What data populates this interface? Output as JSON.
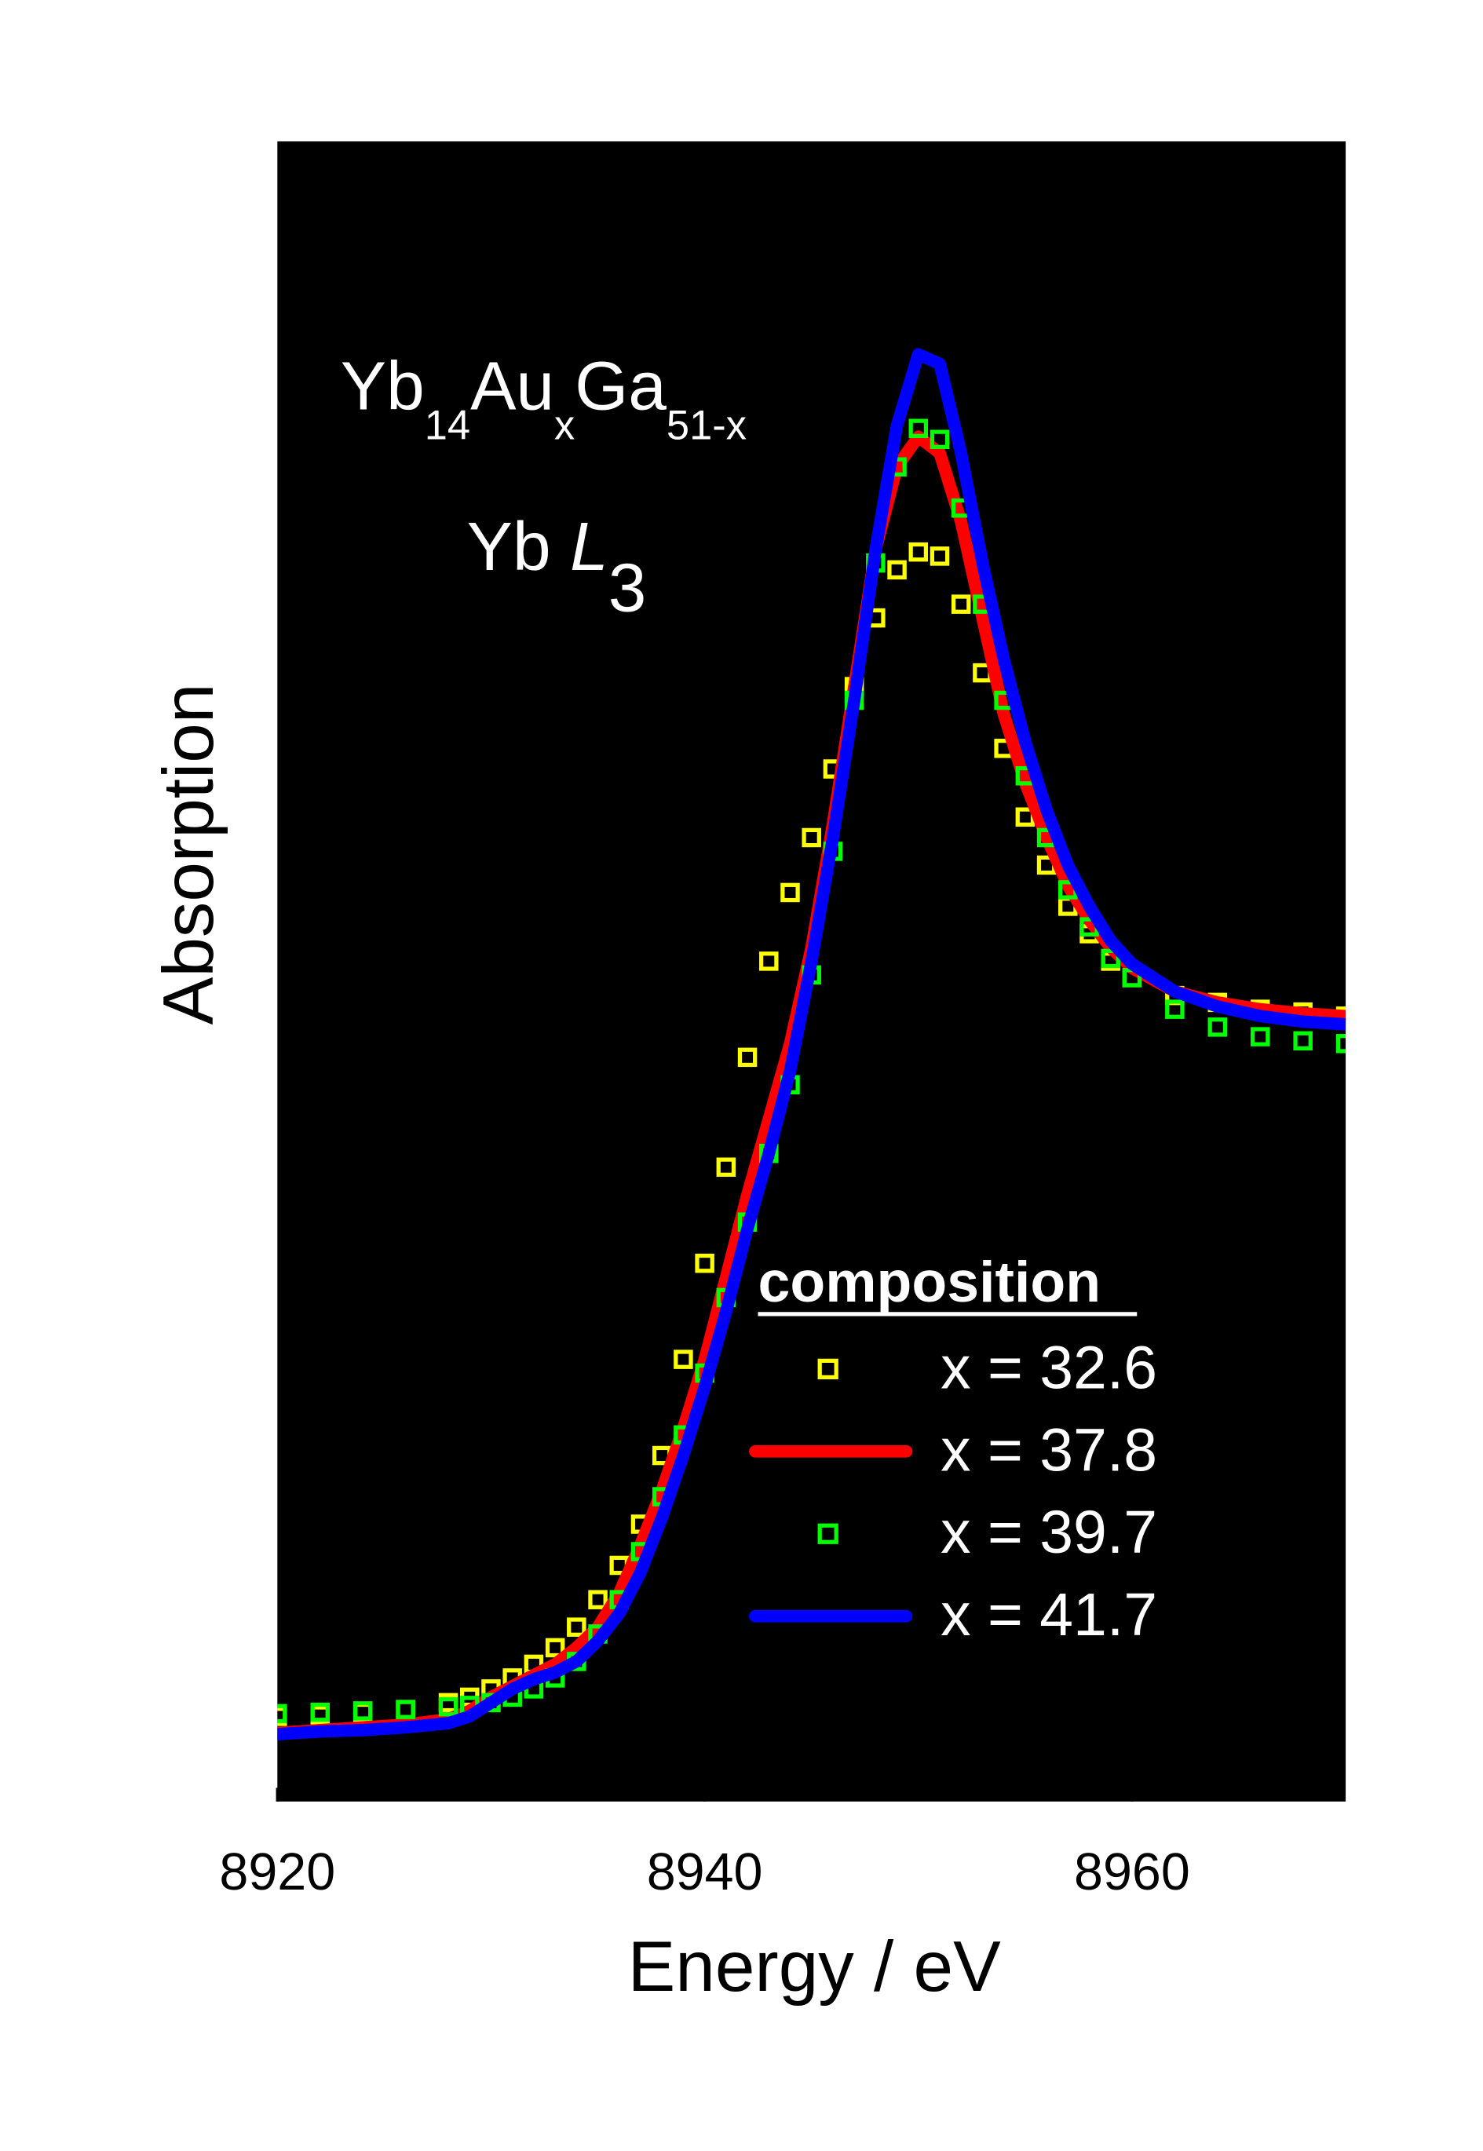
{
  "chart_data": {
    "type": "line",
    "formula": [
      "Yb",
      "14",
      "Au",
      "x",
      "Ga",
      "51-x"
    ],
    "edge": [
      "Yb",
      "L",
      "3"
    ],
    "xlabel": "Energy / eV",
    "ylabel": "Absorption",
    "legend_title": "composition",
    "legend": "lower right",
    "xlim": [
      8920,
      8970
    ],
    "xticks": [
      8920,
      8940,
      8960
    ],
    "ylim": [
      0,
      1.209
    ],
    "background": "#000000",
    "x": [
      8920,
      8922,
      8924,
      8926,
      8928,
      8929,
      8930,
      8931,
      8932,
      8933,
      8934,
      8935,
      8936,
      8937,
      8938,
      8939,
      8940,
      8941,
      8942,
      8943,
      8944,
      8945,
      8946,
      8947,
      8948,
      8949,
      8950,
      8951,
      8952,
      8953,
      8954,
      8955,
      8956,
      8957,
      8958,
      8959,
      8960,
      8962,
      8964,
      8966,
      8968,
      8970
    ],
    "series": [
      {
        "name": "x = 32.6",
        "color": "#ffff00",
        "style": "markers",
        "values": [
          0.062,
          0.063,
          0.065,
          0.067,
          0.072,
          0.076,
          0.082,
          0.09,
          0.1,
          0.112,
          0.127,
          0.147,
          0.172,
          0.202,
          0.252,
          0.322,
          0.392,
          0.462,
          0.542,
          0.612,
          0.662,
          0.702,
          0.752,
          0.812,
          0.862,
          0.897,
          0.91,
          0.907,
          0.872,
          0.822,
          0.767,
          0.717,
          0.682,
          0.652,
          0.632,
          0.612,
          0.6,
          0.587,
          0.582,
          0.577,
          0.575,
          0.572
        ]
      },
      {
        "name": "x = 37.8",
        "color": "#ff0000",
        "style": "line",
        "values": [
          0.05,
          0.052,
          0.054,
          0.056,
          0.06,
          0.066,
          0.076,
          0.084,
          0.092,
          0.1,
          0.112,
          0.127,
          0.152,
          0.187,
          0.227,
          0.272,
          0.322,
          0.382,
          0.442,
          0.497,
          0.552,
          0.622,
          0.712,
          0.812,
          0.912,
          0.972,
          0.994,
          0.982,
          0.932,
          0.862,
          0.792,
          0.742,
          0.702,
          0.667,
          0.642,
          0.622,
          0.607,
          0.59,
          0.582,
          0.577,
          0.574,
          0.572
        ]
      },
      {
        "name": "x = 39.7",
        "color": "#00ff00",
        "style": "markers",
        "values": [
          0.064,
          0.065,
          0.066,
          0.067,
          0.069,
          0.07,
          0.072,
          0.076,
          0.082,
          0.09,
          0.102,
          0.122,
          0.147,
          0.182,
          0.222,
          0.267,
          0.312,
          0.367,
          0.422,
          0.472,
          0.522,
          0.602,
          0.692,
          0.802,
          0.902,
          0.972,
          1.0,
          0.992,
          0.942,
          0.872,
          0.802,
          0.747,
          0.702,
          0.664,
          0.637,
          0.614,
          0.6,
          0.577,
          0.564,
          0.557,
          0.554,
          0.552
        ]
      },
      {
        "name": "x = 41.7",
        "color": "#0000ff",
        "style": "line",
        "values": [
          0.049,
          0.051,
          0.052,
          0.054,
          0.057,
          0.062,
          0.072,
          0.082,
          0.089,
          0.094,
          0.102,
          0.117,
          0.137,
          0.167,
          0.207,
          0.252,
          0.302,
          0.357,
          0.417,
          0.472,
          0.532,
          0.612,
          0.702,
          0.802,
          0.912,
          1.002,
          1.054,
          1.047,
          0.982,
          0.902,
          0.832,
          0.772,
          0.722,
          0.682,
          0.652,
          0.627,
          0.61,
          0.59,
          0.579,
          0.572,
          0.568,
          0.566
        ]
      }
    ]
  }
}
